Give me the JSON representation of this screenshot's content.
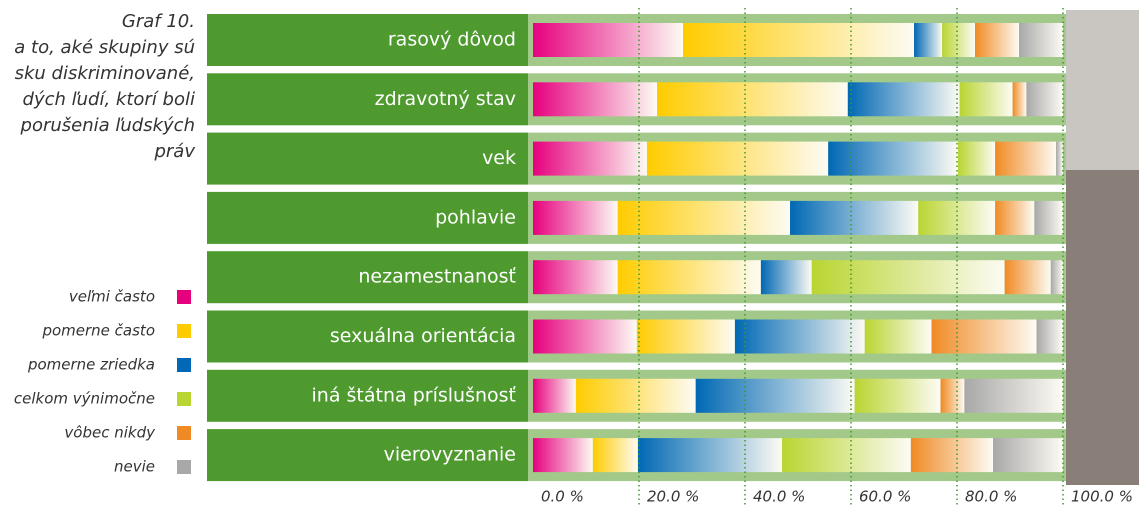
{
  "chart_data": {
    "type": "stacked_barh",
    "title_lines": [
      "Graf 10.",
      "a to, aké skupiny sú",
      "sku diskriminované,",
      "dých ľudí, ktorí boli",
      "porušenia ľudských",
      "práv"
    ],
    "categories": [
      "rasový dôvod",
      "zdravotný stav",
      "vek",
      "pohlavie",
      "nezamestnanosť",
      "sexuálna orientácia",
      "iná štátna príslušnosť",
      "vierovyznanie"
    ],
    "series": [
      {
        "name": "veľmi často",
        "color": "#e6007e",
        "values": [
          28.3,
          23.4,
          21.5,
          16.0,
          16.0,
          19.6,
          8.1,
          11.3
        ]
      },
      {
        "name": "pomerne často",
        "color": "#ffcc00",
        "values": [
          43.6,
          36.0,
          34.2,
          32.5,
          27.0,
          18.5,
          22.6,
          8.5
        ]
      },
      {
        "name": "pomerne zriedka",
        "color": "#0068b4",
        "values": [
          5.3,
          21.1,
          24.5,
          24.2,
          9.6,
          24.5,
          30.0,
          27.2
        ]
      },
      {
        "name": "celkom výnimočne",
        "color": "#b9d531",
        "values": [
          6.2,
          10.0,
          7.0,
          14.5,
          36.4,
          12.6,
          16.2,
          24.3
        ]
      },
      {
        "name": "vôbec nikdy",
        "color": "#f08a24",
        "values": [
          8.3,
          2.6,
          11.5,
          7.4,
          8.7,
          19.8,
          4.5,
          15.5
        ]
      },
      {
        "name": "nevie",
        "color": "#a8a8a8",
        "values": [
          8.3,
          6.9,
          1.3,
          5.4,
          2.3,
          5.0,
          18.6,
          13.2
        ]
      }
    ],
    "xlim": [
      0,
      100
    ],
    "xticks": [
      {
        "value": 0,
        "label": "0.0 %"
      },
      {
        "value": 20,
        "label": "20.0 %"
      },
      {
        "value": 40,
        "label": "40.0 %"
      },
      {
        "value": 60,
        "label": "60.0 %"
      },
      {
        "value": 80,
        "label": "80.0 %"
      },
      {
        "value": 100,
        "label": "100.0 %"
      }
    ],
    "grid": true
  }
}
